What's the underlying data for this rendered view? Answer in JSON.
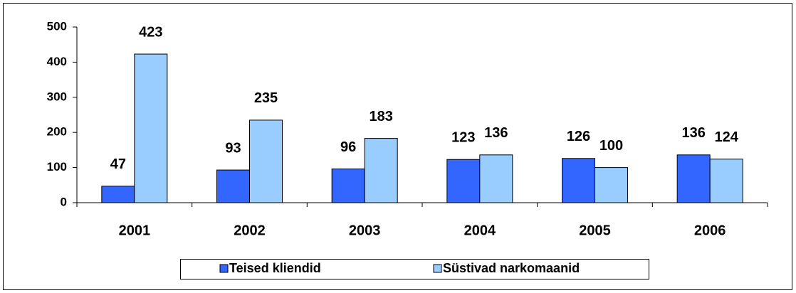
{
  "chart_data": {
    "type": "bar",
    "categories": [
      "2001",
      "2002",
      "2003",
      "2004",
      "2005",
      "2006"
    ],
    "series": [
      {
        "name": "Teised kliendid",
        "color": "#3366ff",
        "values": [
          47,
          93,
          96,
          123,
          126,
          136
        ]
      },
      {
        "name": "Süstivad narkomaanid",
        "color": "#99ccff",
        "values": [
          423,
          235,
          183,
          136,
          100,
          124
        ]
      }
    ],
    "ylim": [
      0,
      500
    ],
    "yticks": [
      0,
      100,
      200,
      300,
      400,
      500
    ],
    "grid": false,
    "legend": "bottom"
  }
}
